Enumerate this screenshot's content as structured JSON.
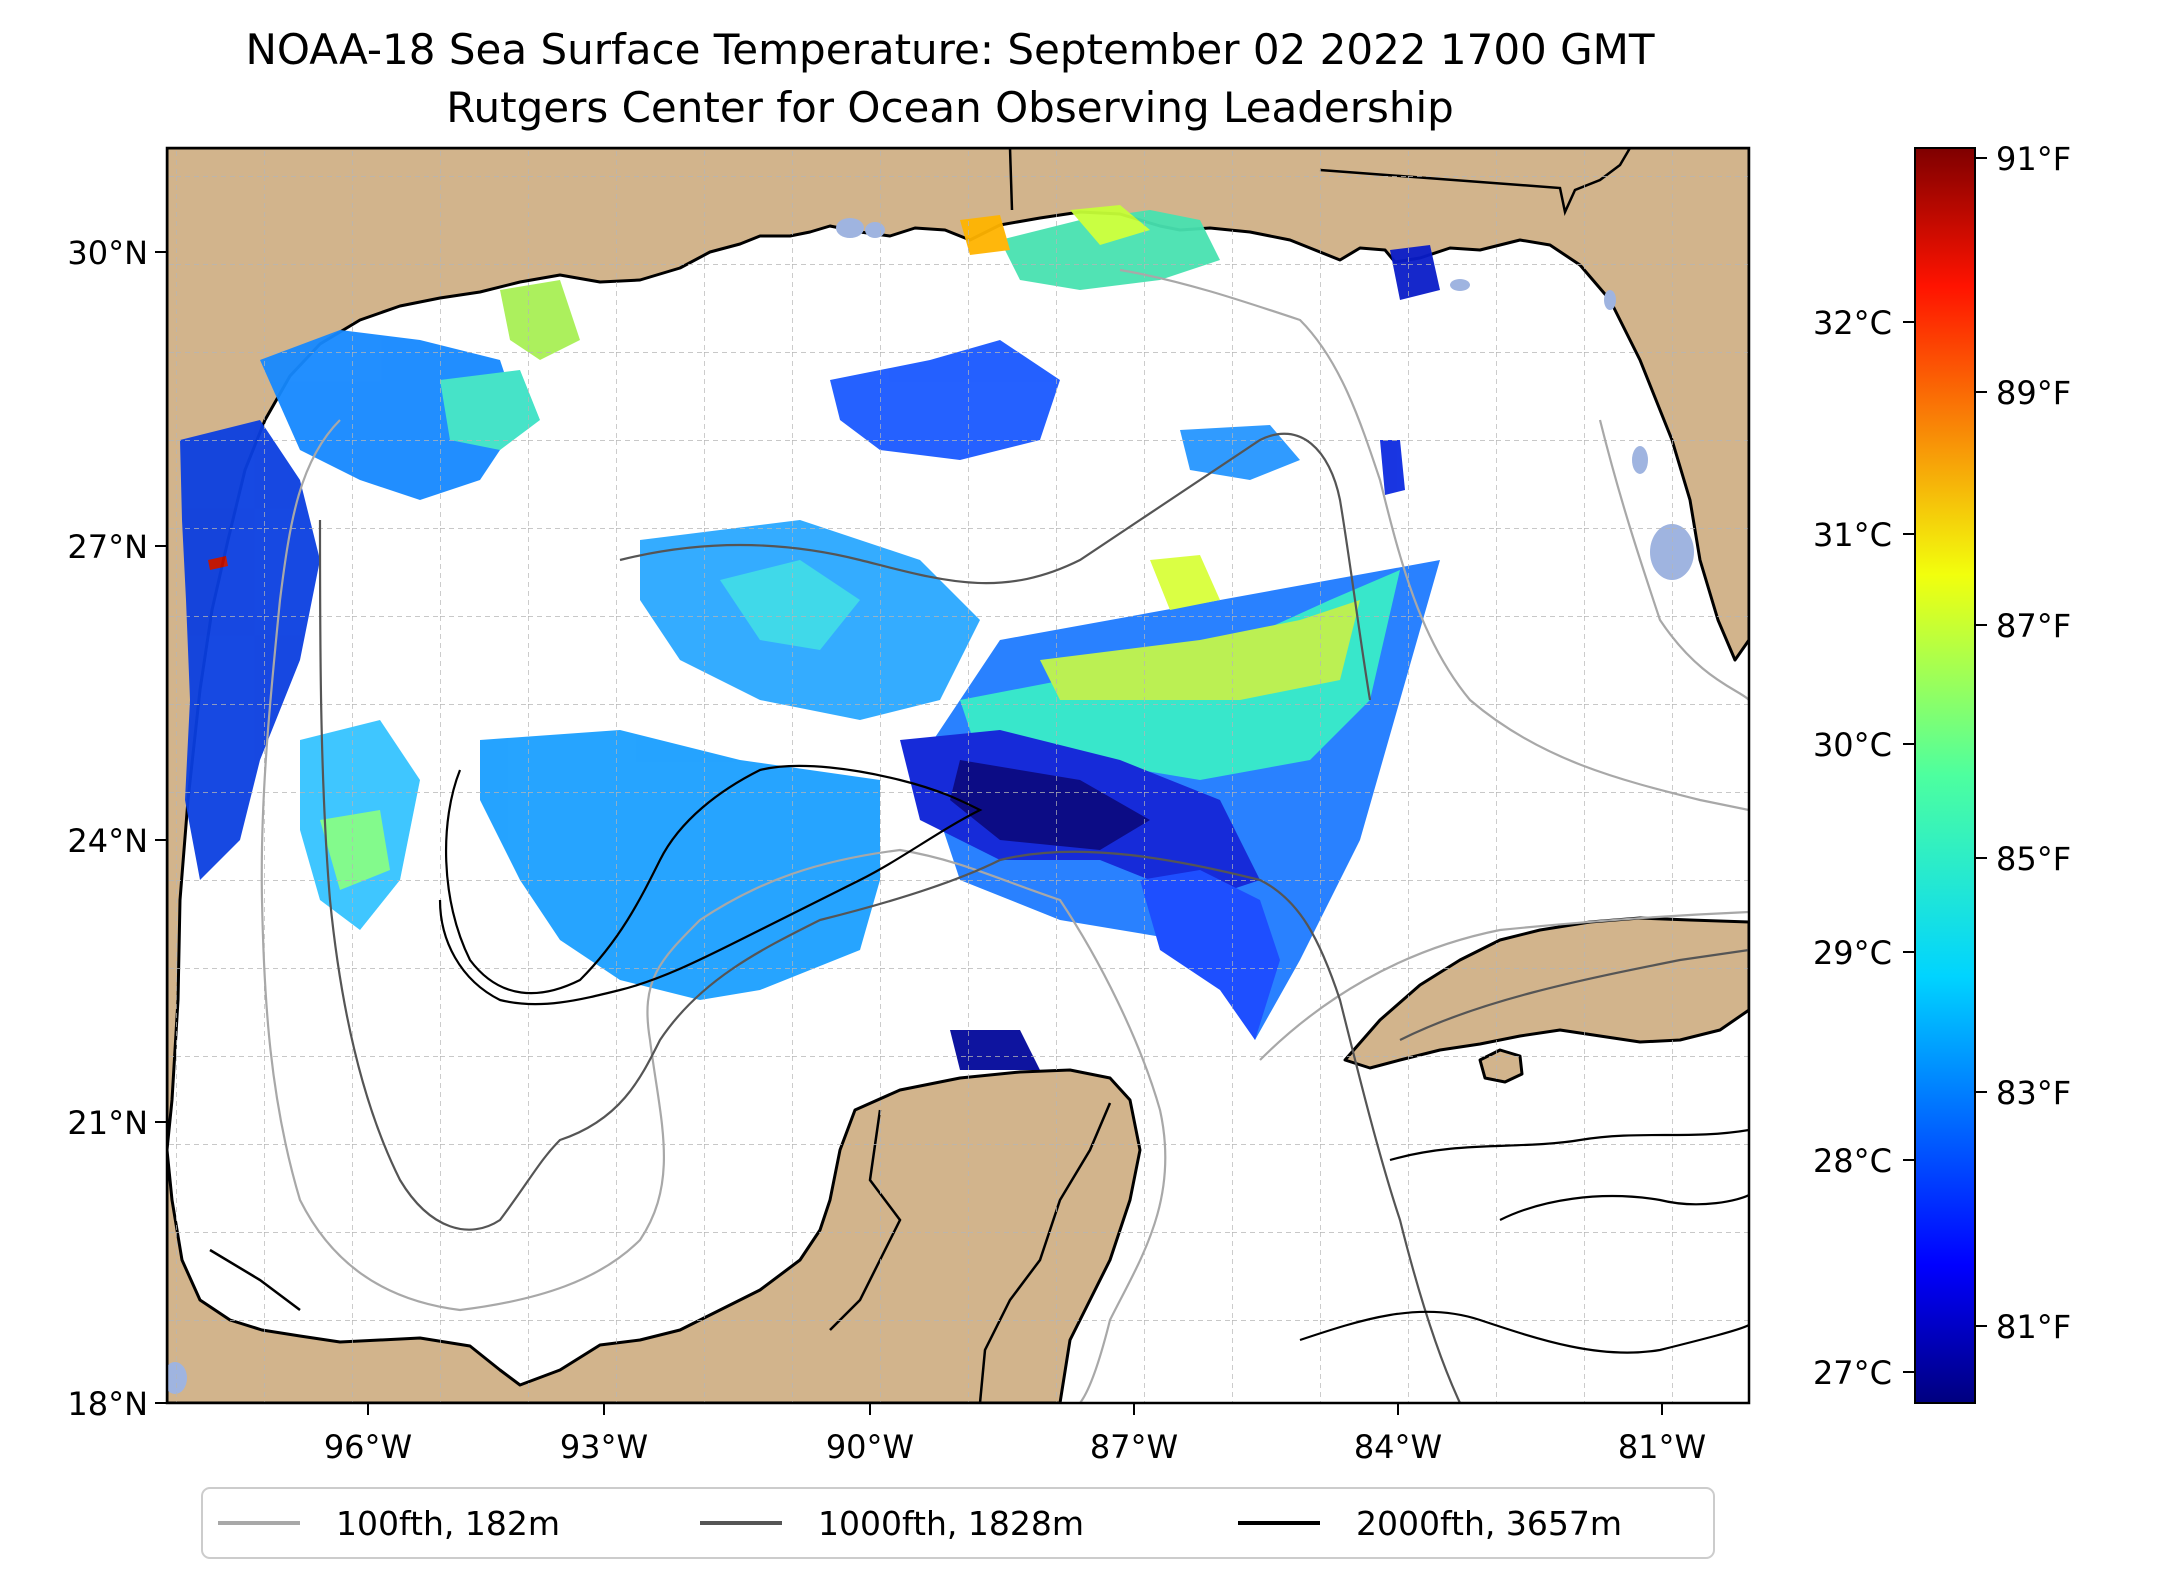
{
  "title": {
    "line1": "NOAA-18 Sea Surface Temperature: September 02 2022 1700 GMT",
    "line2": "Rutgers Center for Ocean Observing Leadership"
  },
  "map": {
    "lat_ticks": [
      "30°N",
      "27°N",
      "24°N",
      "21°N",
      "18°N"
    ],
    "lon_ticks": [
      "96°W",
      "93°W",
      "90°W",
      "87°W",
      "84°W",
      "81°W"
    ],
    "lat_range": [
      18,
      31
    ],
    "lon_range": [
      -98.3,
      -80.3
    ]
  },
  "colorbar": {
    "colormap": "jet",
    "fahrenheit_ticks": [
      "91°F",
      "89°F",
      "87°F",
      "85°F",
      "83°F",
      "81°F"
    ],
    "celsius_ticks": [
      "32°C",
      "31°C",
      "30°C",
      "29°C",
      "28°C",
      "27°C"
    ],
    "celsius_range": [
      26.9,
      32.9
    ]
  },
  "legend": [
    {
      "label": "100fth, 182m",
      "color": "#a8a8a8"
    },
    {
      "label": "1000fth, 1828m",
      "color": "#555555"
    },
    {
      "label": "2000fth, 3657m",
      "color": "#000000"
    }
  ],
  "colors": {
    "land": "#d2b48c",
    "water_bodies": "#9fb4e0",
    "ocean": "#ffffff"
  }
}
